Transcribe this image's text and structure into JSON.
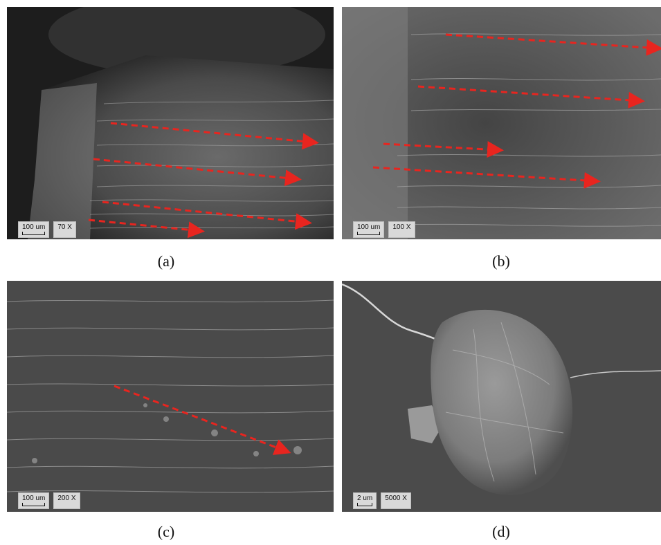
{
  "panels": [
    {
      "id": "a",
      "caption": "(a)",
      "scale_label": "100 um",
      "magnification": "70 X"
    },
    {
      "id": "b",
      "caption": "(b)",
      "scale_label": "100 um",
      "magnification": "100 X"
    },
    {
      "id": "c",
      "caption": "(c)",
      "scale_label": "100 um",
      "magnification": "200 X"
    },
    {
      "id": "d",
      "caption": "(d)",
      "scale_label": "2 um",
      "magnification": "5000 X"
    }
  ],
  "colors": {
    "arrow": "#e8251f",
    "background": "#ffffff"
  }
}
